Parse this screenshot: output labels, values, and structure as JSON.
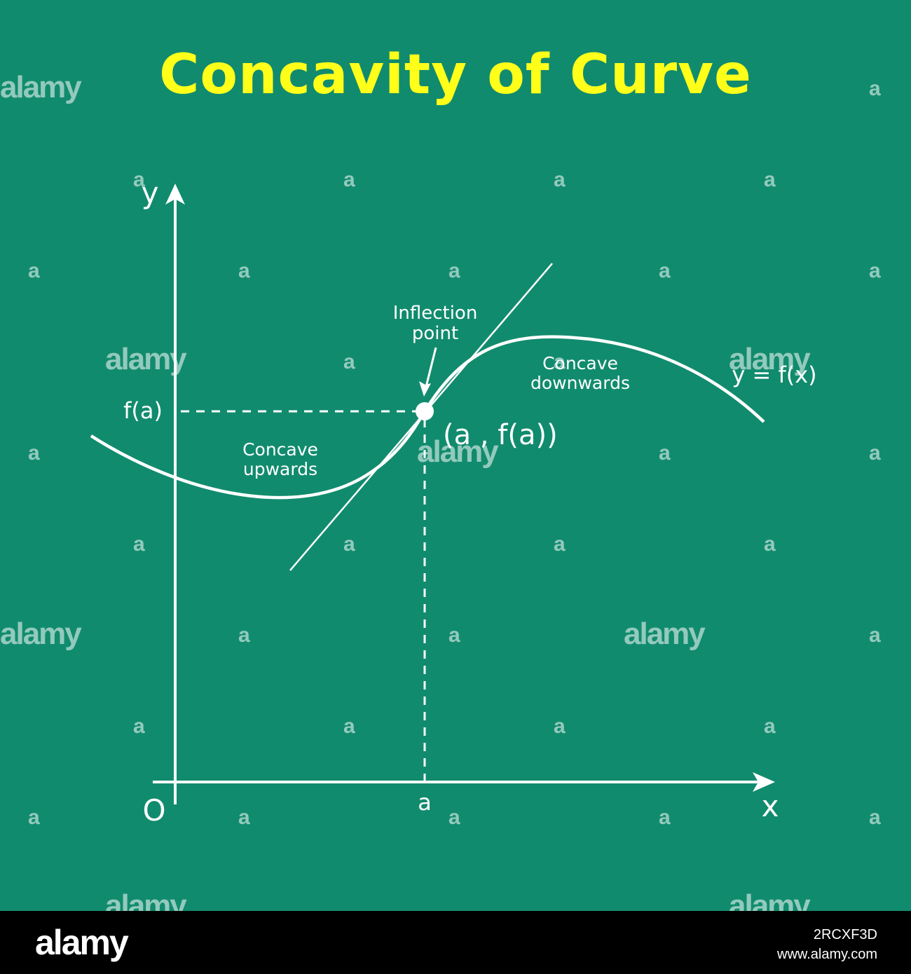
{
  "title": "Concavity of Curve",
  "colors": {
    "background": "#118b6e",
    "title": "#ffff1a",
    "lines": "#ffffff",
    "footer": "#000000"
  },
  "diagram": {
    "axis_y_label": "y",
    "axis_x_label": "x",
    "origin_label": "O",
    "x_mark_label": "a",
    "y_mark_label": "f(a)",
    "inflection_label_line1": "Inflection",
    "inflection_label_line2": "point",
    "point_label": "(a , f(a))",
    "concave_up_line1": "Concave",
    "concave_up_line2": "upwards",
    "concave_down_line1": "Concave",
    "concave_down_line2": "downwards",
    "curve_label": "y = f(x)"
  },
  "watermark": {
    "text": "alamy",
    "letter": "a"
  },
  "footer": {
    "logo": "alamy",
    "image_id": "2RCXF3D",
    "site": "www.alamy.com"
  }
}
